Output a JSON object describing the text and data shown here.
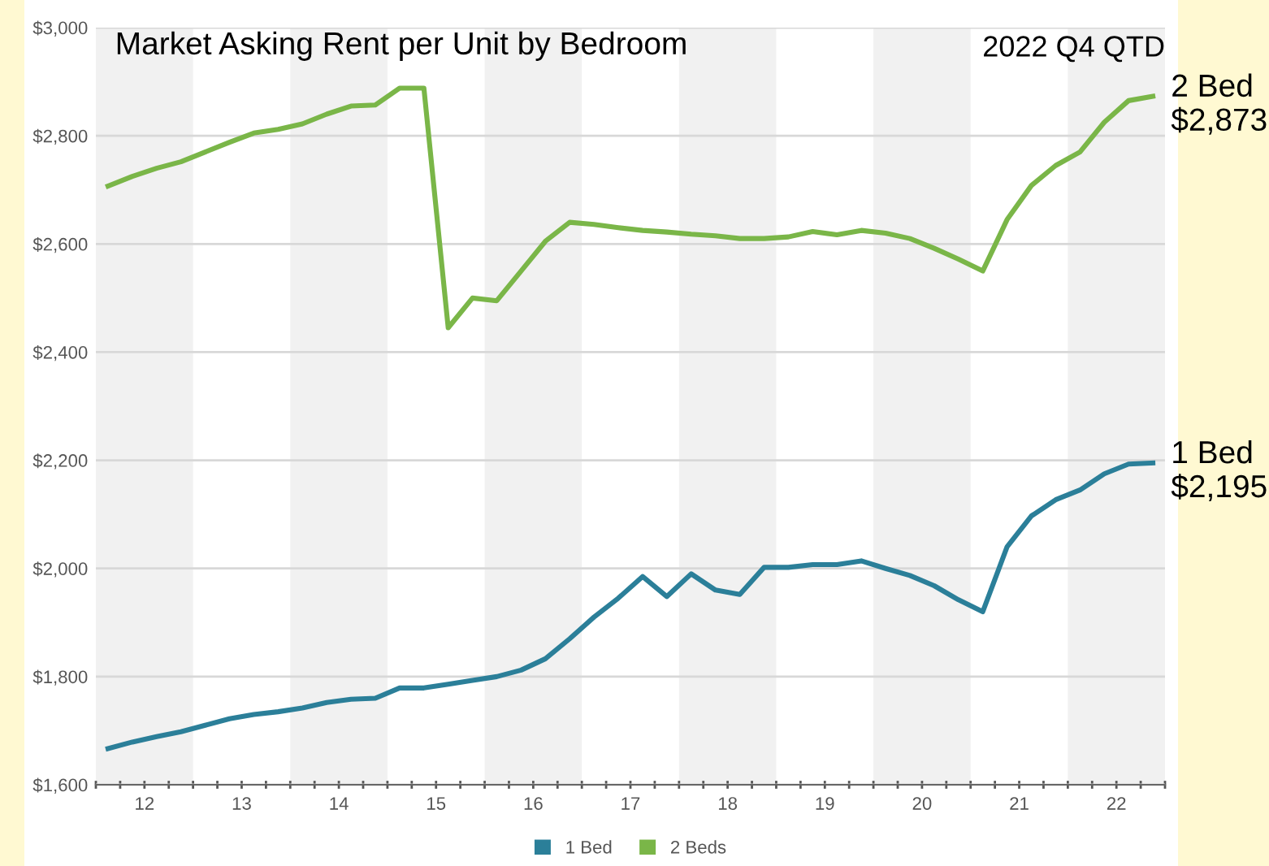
{
  "chart_data": {
    "type": "line",
    "title": "Market Asking Rent per Unit by Bedroom",
    "annotations": [
      "2022 Q4 QTD",
      {
        "text": "2 Bed\n$2,873",
        "x": 22.875,
        "y": 2873
      },
      {
        "text": "1 Bed\n$2,195",
        "x": 22.875,
        "y": 2195
      }
    ],
    "x": [
      12.125,
      12.375,
      12.625,
      12.875,
      13.125,
      13.375,
      13.625,
      13.875,
      14.125,
      14.375,
      14.625,
      14.875,
      15.125,
      15.375,
      15.625,
      15.875,
      16.125,
      16.375,
      16.625,
      16.875,
      17.125,
      17.375,
      17.625,
      17.875,
      18.125,
      18.375,
      18.625,
      18.875,
      19.125,
      19.375,
      19.625,
      19.875,
      20.125,
      20.375,
      20.625,
      20.875,
      21.125,
      21.375,
      21.625,
      21.875,
      22.125,
      22.375,
      22.625,
      22.875
    ],
    "series": [
      {
        "name": "1 Bed",
        "color": "#2b7f99",
        "values": [
          1667,
          1679,
          1689,
          1698,
          1710,
          1722,
          1730,
          1735,
          1742,
          1752,
          1758,
          1760,
          1779,
          1779,
          1786,
          1793,
          1800,
          1812,
          1833,
          1870,
          1910,
          1945,
          1985,
          1948,
          1990,
          1960,
          1952,
          2002,
          2002,
          2007,
          2007,
          2014,
          2000,
          1987,
          1968,
          1942,
          1920,
          2040,
          2097,
          2127,
          2145,
          2175,
          2193,
          2195
        ]
      },
      {
        "name": "2 Beds",
        "color": "#7ab648",
        "values": [
          2707,
          2725,
          2740,
          2752,
          2770,
          2788,
          2805,
          2812,
          2822,
          2840,
          2855,
          2857,
          2888,
          2888,
          2445,
          2500,
          2495,
          2550,
          2605,
          2640,
          2636,
          2630,
          2625,
          2622,
          2618,
          2615,
          2610,
          2610,
          2613,
          2623,
          2617,
          2625,
          2620,
          2610,
          2592,
          2572,
          2550,
          2645,
          2708,
          2745,
          2770,
          2825,
          2865,
          2873
        ]
      }
    ],
    "xlim": [
      12,
      23
    ],
    "xticks": [
      {
        "value": 12,
        "label": null
      },
      {
        "value": 12.25,
        "label": null
      },
      {
        "value": 12.5,
        "label": "12"
      },
      {
        "value": 12.75,
        "label": null
      },
      {
        "value": 13,
        "label": null
      },
      {
        "value": 13.25,
        "label": null
      },
      {
        "value": 13.5,
        "label": "13"
      },
      {
        "value": 13.75,
        "label": null
      },
      {
        "value": 14,
        "label": null
      },
      {
        "value": 14.25,
        "label": null
      },
      {
        "value": 14.5,
        "label": "14"
      },
      {
        "value": 14.75,
        "label": null
      },
      {
        "value": 15,
        "label": null
      },
      {
        "value": 15.25,
        "label": null
      },
      {
        "value": 15.5,
        "label": "15"
      },
      {
        "value": 15.75,
        "label": null
      },
      {
        "value": 16,
        "label": null
      },
      {
        "value": 16.25,
        "label": null
      },
      {
        "value": 16.5,
        "label": "16"
      },
      {
        "value": 16.75,
        "label": null
      },
      {
        "value": 17,
        "label": null
      },
      {
        "value": 17.25,
        "label": null
      },
      {
        "value": 17.5,
        "label": "17"
      },
      {
        "value": 17.75,
        "label": null
      },
      {
        "value": 18,
        "label": null
      },
      {
        "value": 18.25,
        "label": null
      },
      {
        "value": 18.5,
        "label": "18"
      },
      {
        "value": 18.75,
        "label": null
      },
      {
        "value": 19,
        "label": null
      },
      {
        "value": 19.25,
        "label": null
      },
      {
        "value": 19.5,
        "label": "19"
      },
      {
        "value": 19.75,
        "label": null
      },
      {
        "value": 20,
        "label": null
      },
      {
        "value": 20.25,
        "label": null
      },
      {
        "value": 20.5,
        "label": "20"
      },
      {
        "value": 20.75,
        "label": null
      },
      {
        "value": 21,
        "label": null
      },
      {
        "value": 21.25,
        "label": null
      },
      {
        "value": 21.5,
        "label": "21"
      },
      {
        "value": 21.75,
        "label": null
      },
      {
        "value": 22,
        "label": null
      },
      {
        "value": 22.25,
        "label": null
      },
      {
        "value": 22.5,
        "label": "22"
      },
      {
        "value": 22.75,
        "label": null
      },
      {
        "value": 23,
        "label": null
      }
    ],
    "ylim": [
      1600,
      3000
    ],
    "yticks": [
      {
        "value": 1600,
        "label": "$1,600"
      },
      {
        "value": 1800,
        "label": "$1,800"
      },
      {
        "value": 2000,
        "label": "$2,000"
      },
      {
        "value": 2200,
        "label": "$2,200"
      },
      {
        "value": 2400,
        "label": "$2,400"
      },
      {
        "value": 2600,
        "label": "$2,600"
      },
      {
        "value": 2800,
        "label": "$2,800"
      },
      {
        "value": 3000,
        "label": "$3,000"
      }
    ],
    "bands": [
      {
        "axis": "x",
        "from": 12,
        "to": 13,
        "color": "#f1f1f1"
      },
      {
        "axis": "x",
        "from": 14,
        "to": 15,
        "color": "#f1f1f1"
      },
      {
        "axis": "x",
        "from": 16,
        "to": 17,
        "color": "#f1f1f1"
      },
      {
        "axis": "x",
        "from": 18,
        "to": 19,
        "color": "#f1f1f1"
      },
      {
        "axis": "x",
        "from": 20,
        "to": 21,
        "color": "#f1f1f1"
      },
      {
        "axis": "x",
        "from": 22,
        "to": 23,
        "color": "#f1f1f1"
      }
    ],
    "grid": "y",
    "legend": "bottom",
    "marker": "none",
    "line_style": "solid"
  }
}
